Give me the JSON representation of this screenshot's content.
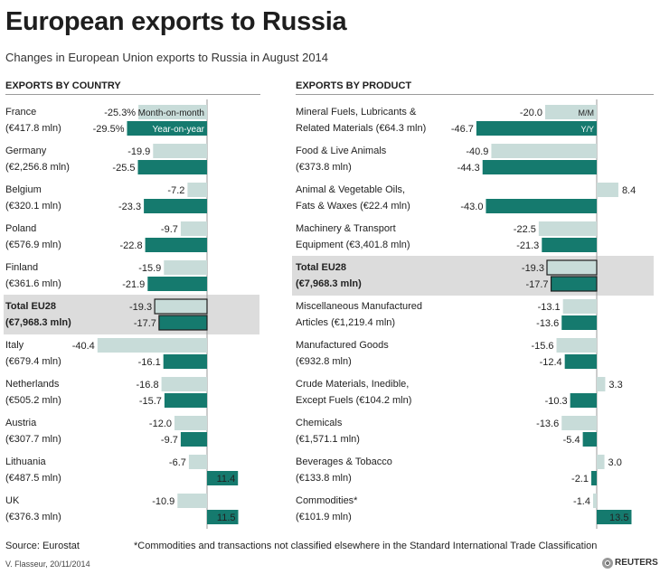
{
  "title": "European exports to Russia",
  "subtitle": "Changes in European Union exports to Russia in August 2014",
  "colors": {
    "mom": "#c8dcd9",
    "yoy": "#157a6e",
    "total_band": "#dcdcdc",
    "axis": "#9a9a9a"
  },
  "footer": {
    "source": "Source: Eurostat",
    "note": "*Commodities and transactions not classified elsewhere in the Standard International Trade Classification",
    "credit": "V. Flasseur, 20/11/2014",
    "brand": "REUTERS"
  },
  "chart_data": [
    {
      "type": "bar",
      "title": "EXPORTS BY COUNTRY",
      "categories": [
        [
          "France",
          "(€417.8 mln)"
        ],
        [
          "Germany",
          "(€2,256.8 mln)"
        ],
        [
          "Belgium",
          "(€320.1 mln)"
        ],
        [
          "Poland",
          "(€576.9 mln)"
        ],
        [
          "Finland",
          "(€361.6 mln)"
        ],
        [
          "Total EU28",
          "(€7,968.3 mln)"
        ],
        [
          "Italy",
          "(€679.4 mln)"
        ],
        [
          "Netherlands",
          "(€505.2 mln)"
        ],
        [
          "Austria",
          "(€307.7 mln)"
        ],
        [
          "Lithuania",
          "(€487.5 mln)"
        ],
        [
          "UK",
          "(€376.3 mln)"
        ]
      ],
      "series": [
        {
          "name": "Month-on-month",
          "values": [
            -25.3,
            -19.9,
            -7.2,
            -9.7,
            -15.9,
            -19.3,
            -40.4,
            -16.8,
            -12.0,
            -6.7,
            -10.9
          ]
        },
        {
          "name": "Year-on-year",
          "values": [
            -29.5,
            -25.5,
            -23.3,
            -22.8,
            -21.9,
            -17.7,
            -16.1,
            -15.7,
            -9.7,
            11.4,
            11.5
          ]
        }
      ],
      "labels": [
        [
          "-25.3%",
          "-29.5%"
        ],
        [
          "-19.9",
          "-25.5"
        ],
        [
          "-7.2",
          "-23.3"
        ],
        [
          "-9.7",
          "-22.8"
        ],
        [
          "-15.9",
          "-21.9"
        ],
        [
          "-19.3",
          "-17.7"
        ],
        [
          "-40.4",
          "-16.1"
        ],
        [
          "-16.8",
          "-15.7"
        ],
        [
          "-12.0",
          "-9.7"
        ],
        [
          "-6.7",
          "11.4"
        ],
        [
          "-10.9",
          "11.5"
        ]
      ],
      "highlight_index": 5
    },
    {
      "type": "bar",
      "title": "EXPORTS BY PRODUCT",
      "categories": [
        [
          "Mineral Fuels, Lubricants &",
          "Related Materials (€64.3 mln)"
        ],
        [
          "Food & Live Animals",
          "(€373.8 mln)"
        ],
        [
          "Animal & Vegetable Oils,",
          "Fats & Waxes (€22.4 mln)"
        ],
        [
          "Machinery & Transport",
          "Equipment (€3,401.8 mln)"
        ],
        [
          "Total EU28",
          "(€7,968.3 mln)"
        ],
        [
          "Miscellaneous Manufactured",
          "Articles (€1,219.4 mln)"
        ],
        [
          "Manufactured Goods",
          "(€932.8 mln)"
        ],
        [
          "Crude Materials, Inedible,",
          "Except Fuels (€104.2 mln)"
        ],
        [
          "Chemicals",
          "(€1,571.1 mln)"
        ],
        [
          "Beverages & Tobacco",
          "(€133.8 mln)"
        ],
        [
          "Commodities*",
          "(€101.9 mln)"
        ]
      ],
      "series": [
        {
          "name": "M/M",
          "values": [
            -20.0,
            -40.9,
            8.4,
            -22.5,
            -19.3,
            -13.1,
            -15.6,
            3.3,
            -13.6,
            3.0,
            -1.4
          ]
        },
        {
          "name": "Y/Y",
          "values": [
            -46.7,
            -44.3,
            -43.0,
            -21.3,
            -17.7,
            -13.6,
            -12.4,
            -10.3,
            -5.4,
            -2.1,
            13.5
          ]
        }
      ],
      "labels": [
        [
          "-20.0",
          "-46.7"
        ],
        [
          "-40.9",
          "-44.3"
        ],
        [
          "8.4",
          "-43.0"
        ],
        [
          "-22.5",
          "-21.3"
        ],
        [
          "-19.3",
          "-17.7"
        ],
        [
          "-13.1",
          "-13.6"
        ],
        [
          "-15.6",
          "-12.4"
        ],
        [
          "3.3",
          "-10.3"
        ],
        [
          "-13.6",
          "-5.4"
        ],
        [
          "3.0",
          "-2.1"
        ],
        [
          "-1.4",
          "13.5"
        ]
      ],
      "highlight_index": 4
    }
  ]
}
